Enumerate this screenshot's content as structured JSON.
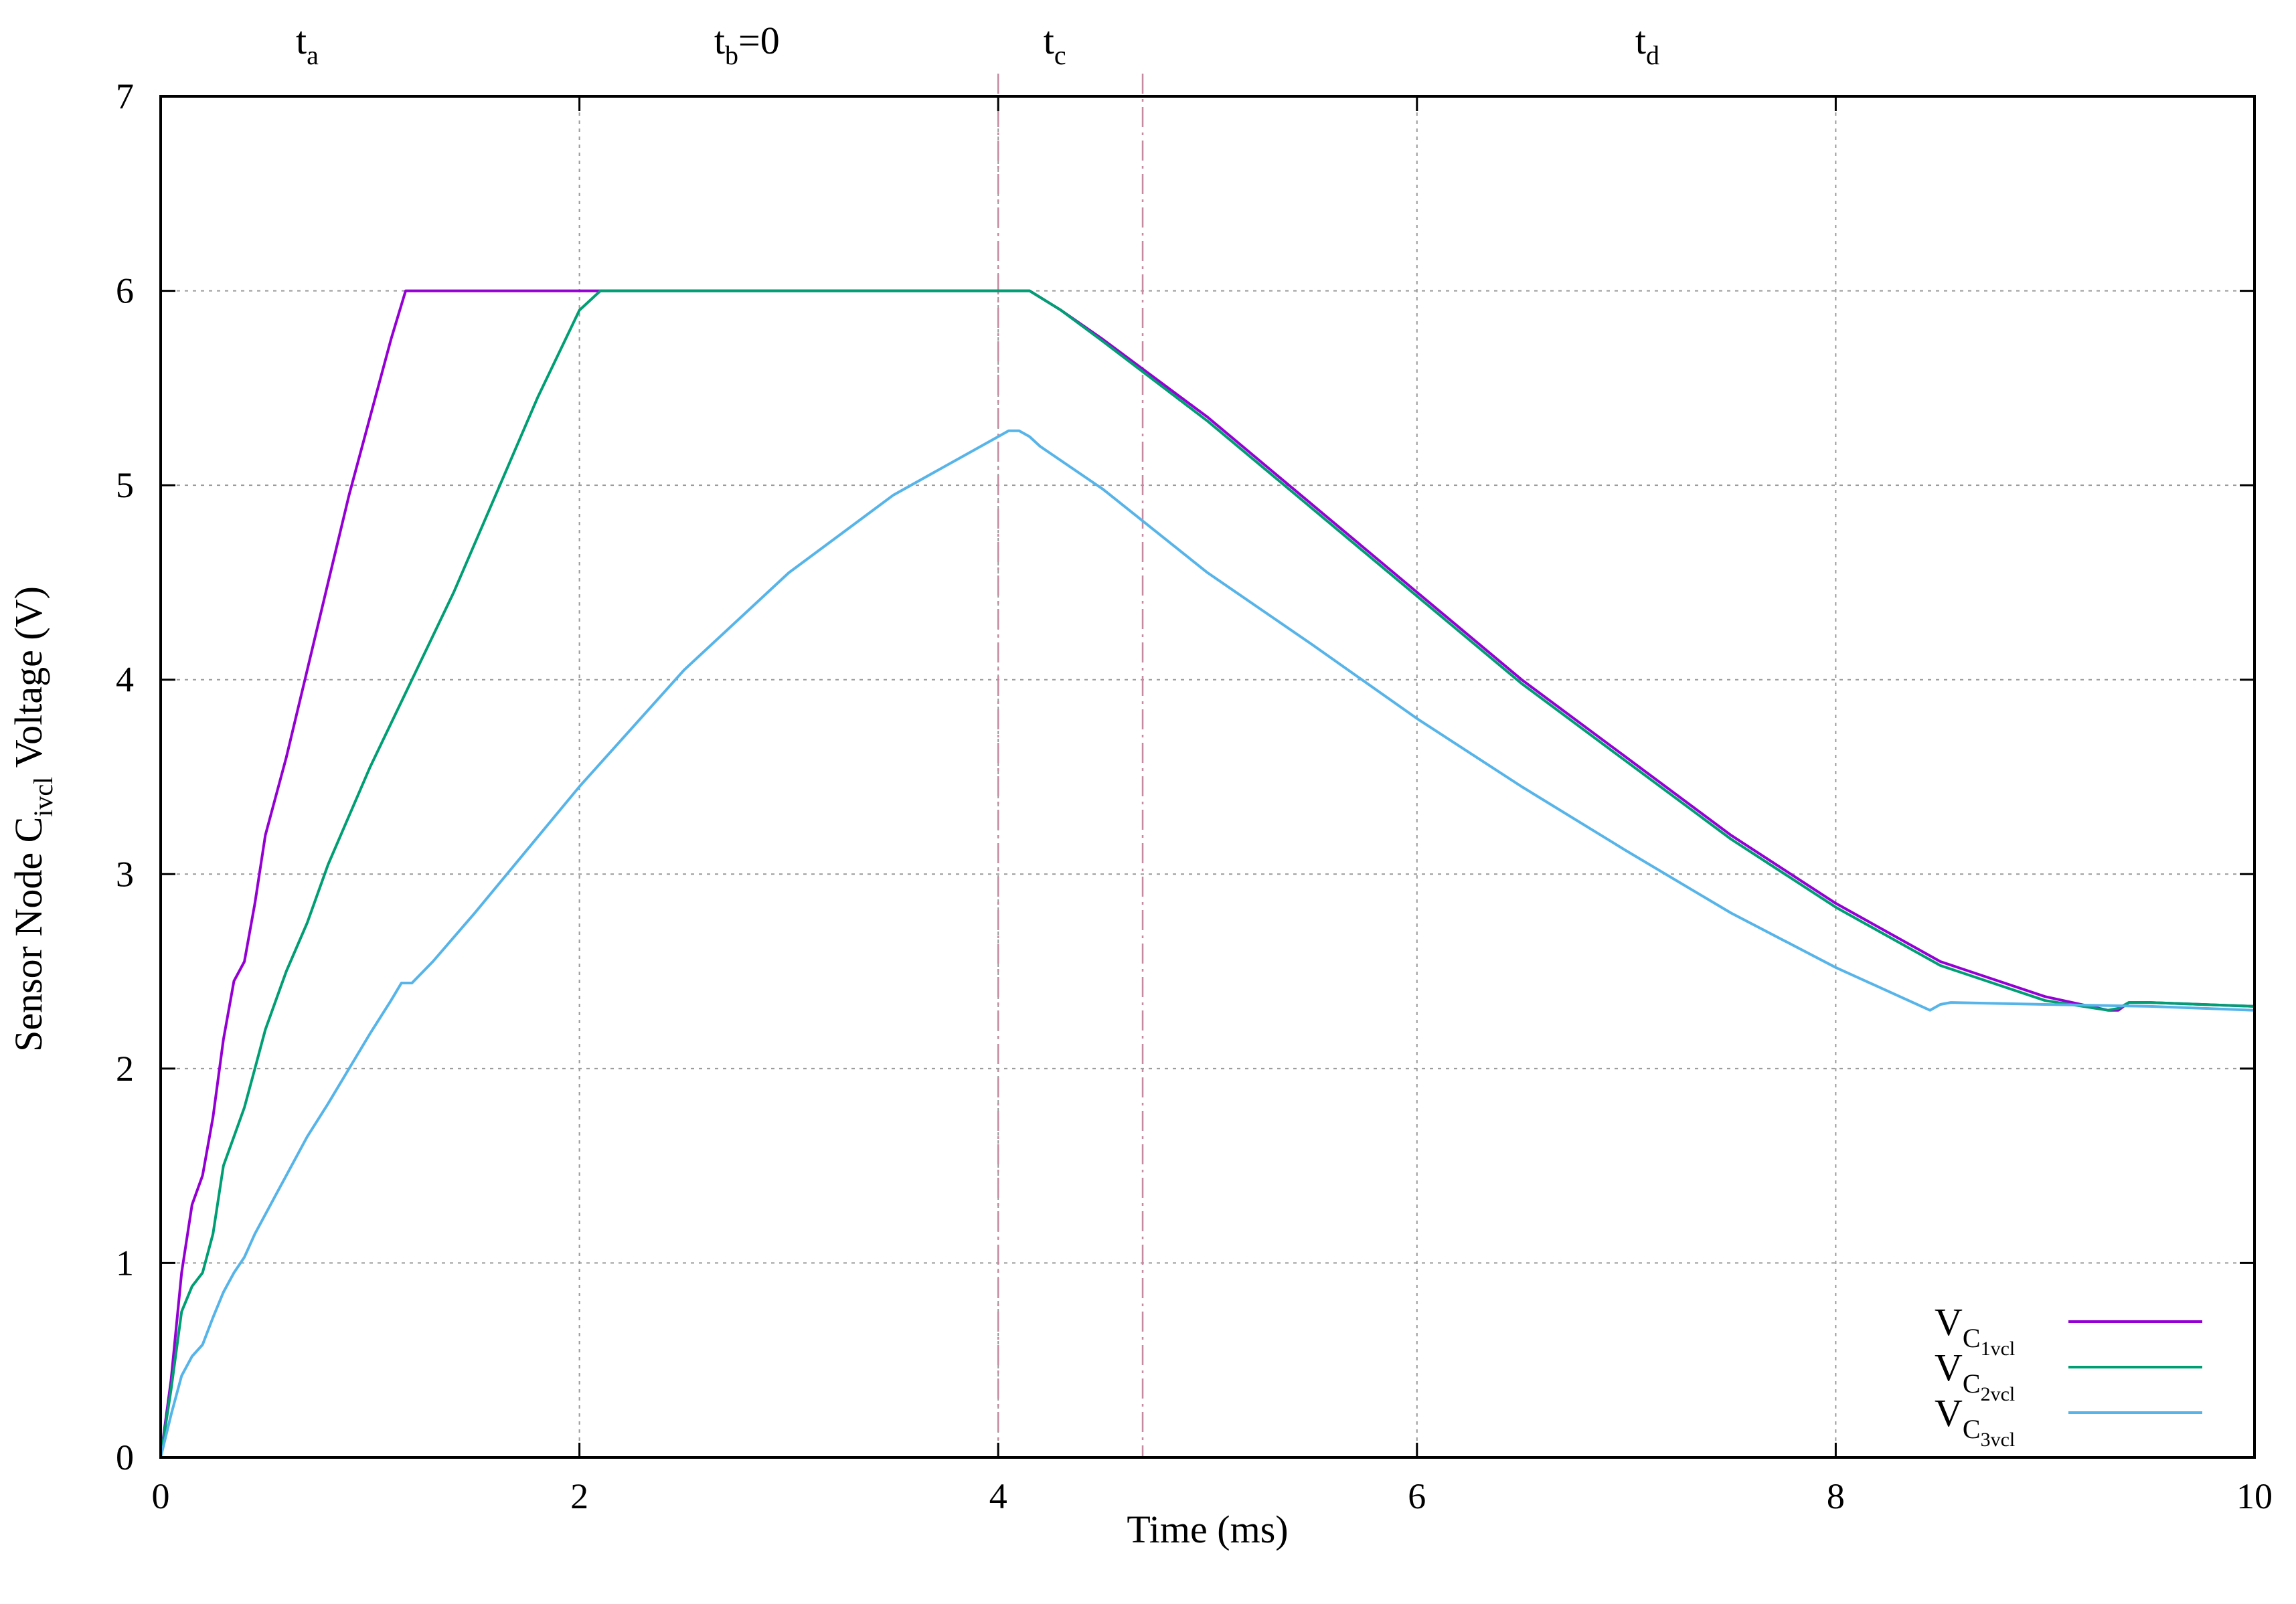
{
  "chart_data": {
    "type": "line",
    "xlabel": "Time (ms)",
    "ylabel": {
      "pre": "Sensor Node C",
      "sub": "ivcl",
      "post": " Voltage (V)"
    },
    "xlim": [
      0,
      10
    ],
    "ylim": [
      0,
      7
    ],
    "x_ticks": [
      0,
      2,
      4,
      6,
      8,
      10
    ],
    "y_ticks": [
      0,
      1,
      2,
      3,
      4,
      5,
      6,
      7
    ],
    "grid": true,
    "legend_position": "bottom-right",
    "phase_markers": [
      {
        "base": "t",
        "sub": "a",
        "tail": "",
        "x": 0.7
      },
      {
        "base": "t",
        "sub": "b",
        "tail": "=0",
        "x": 2.8
      },
      {
        "base": "t",
        "sub": "c",
        "tail": "",
        "x": 4.27
      },
      {
        "base": "t",
        "sub": "d",
        "tail": "",
        "x": 7.1
      }
    ],
    "vertical_markers": [
      4.0,
      4.69
    ],
    "series": [
      {
        "name": {
          "base": "V",
          "sub": "C",
          "subsub": "1vcl"
        },
        "color": "#9400d3",
        "x": [
          0,
          0.05,
          0.1,
          0.15,
          0.2,
          0.25,
          0.3,
          0.35,
          0.4,
          0.45,
          0.5,
          0.55,
          0.6,
          0.7,
          0.8,
          0.9,
          1.0,
          1.1,
          1.17,
          2.1,
          3.0,
          4.0,
          4.15,
          4.3,
          4.5,
          5.0,
          5.5,
          6.0,
          6.5,
          7.0,
          7.5,
          8.0,
          8.5,
          9.0,
          9.3,
          9.35,
          9.4,
          9.5,
          10.0
        ],
        "y": [
          0,
          0.4,
          0.95,
          1.3,
          1.45,
          1.75,
          2.15,
          2.45,
          2.55,
          2.85,
          3.2,
          3.4,
          3.6,
          4.05,
          4.5,
          4.95,
          5.35,
          5.75,
          6.0,
          6.0,
          6.0,
          6.0,
          6.0,
          5.9,
          5.75,
          5.35,
          4.9,
          4.45,
          4.0,
          3.6,
          3.2,
          2.85,
          2.55,
          2.37,
          2.3,
          2.3,
          2.34,
          2.34,
          2.32
        ]
      },
      {
        "name": {
          "base": "V",
          "sub": "C",
          "subsub": "2vcl"
        },
        "color": "#009e73",
        "x": [
          0,
          0.05,
          0.1,
          0.15,
          0.2,
          0.25,
          0.3,
          0.35,
          0.4,
          0.45,
          0.5,
          0.55,
          0.6,
          0.7,
          0.8,
          1.0,
          1.2,
          1.4,
          1.6,
          1.8,
          2.0,
          2.1,
          2.13,
          3.0,
          4.0,
          4.15,
          4.3,
          4.5,
          5.0,
          5.5,
          6.0,
          6.5,
          7.0,
          7.5,
          8.0,
          8.5,
          9.0,
          9.3,
          9.35,
          9.4,
          9.5,
          10.0
        ],
        "y": [
          0,
          0.35,
          0.75,
          0.88,
          0.95,
          1.15,
          1.5,
          1.65,
          1.8,
          2.0,
          2.2,
          2.35,
          2.5,
          2.75,
          3.05,
          3.55,
          4.0,
          4.45,
          4.95,
          5.45,
          5.9,
          6.0,
          6.0,
          6.0,
          6.0,
          6.0,
          5.9,
          5.74,
          5.33,
          4.88,
          4.43,
          3.98,
          3.58,
          3.18,
          2.83,
          2.53,
          2.35,
          2.3,
          2.31,
          2.34,
          2.34,
          2.32
        ]
      },
      {
        "name": {
          "base": "V",
          "sub": "C",
          "subsub": "3vcl"
        },
        "color": "#56b4e9",
        "x": [
          0,
          0.05,
          0.1,
          0.15,
          0.2,
          0.25,
          0.3,
          0.35,
          0.4,
          0.45,
          0.5,
          0.55,
          0.6,
          0.7,
          0.8,
          0.9,
          1.0,
          1.1,
          1.15,
          1.2,
          1.3,
          1.5,
          2.0,
          2.5,
          3.0,
          3.5,
          4.0,
          4.05,
          4.1,
          4.15,
          4.2,
          4.5,
          5.0,
          5.5,
          6.0,
          6.5,
          7.0,
          7.5,
          8.0,
          8.45,
          8.5,
          8.55,
          9.0,
          9.5,
          10.0
        ],
        "y": [
          0,
          0.22,
          0.42,
          0.52,
          0.58,
          0.72,
          0.85,
          0.95,
          1.03,
          1.15,
          1.25,
          1.35,
          1.45,
          1.65,
          1.82,
          2.0,
          2.18,
          2.35,
          2.44,
          2.44,
          2.55,
          2.8,
          3.45,
          4.05,
          4.55,
          4.95,
          5.25,
          5.28,
          5.28,
          5.25,
          5.2,
          4.98,
          4.55,
          4.18,
          3.8,
          3.45,
          3.12,
          2.8,
          2.52,
          2.3,
          2.33,
          2.34,
          2.33,
          2.32,
          2.3
        ]
      }
    ]
  }
}
